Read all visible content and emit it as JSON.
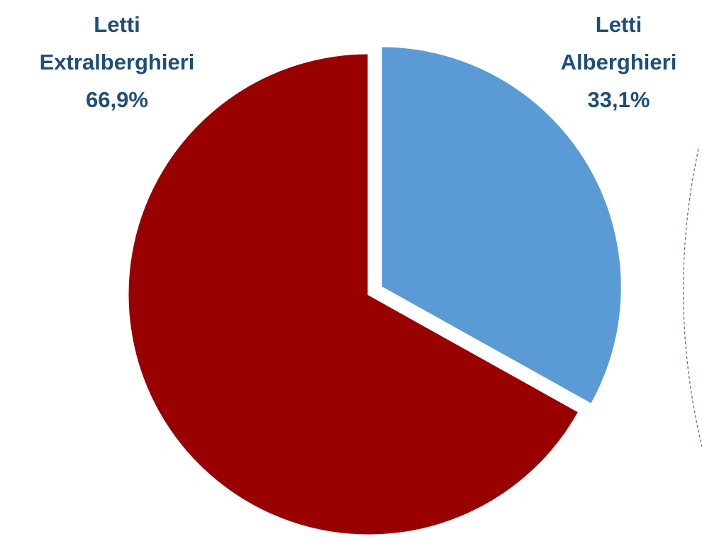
{
  "chart_data": {
    "type": "pie",
    "categories": [
      "Letti Alberghieri",
      "Letti Extralberghieri"
    ],
    "values": [
      33.1,
      66.9
    ],
    "value_labels": [
      "33,1%",
      "66,9%"
    ],
    "colors": [
      "#5b9bd5",
      "#990000"
    ],
    "exploded": [
      true,
      false
    ]
  }
}
